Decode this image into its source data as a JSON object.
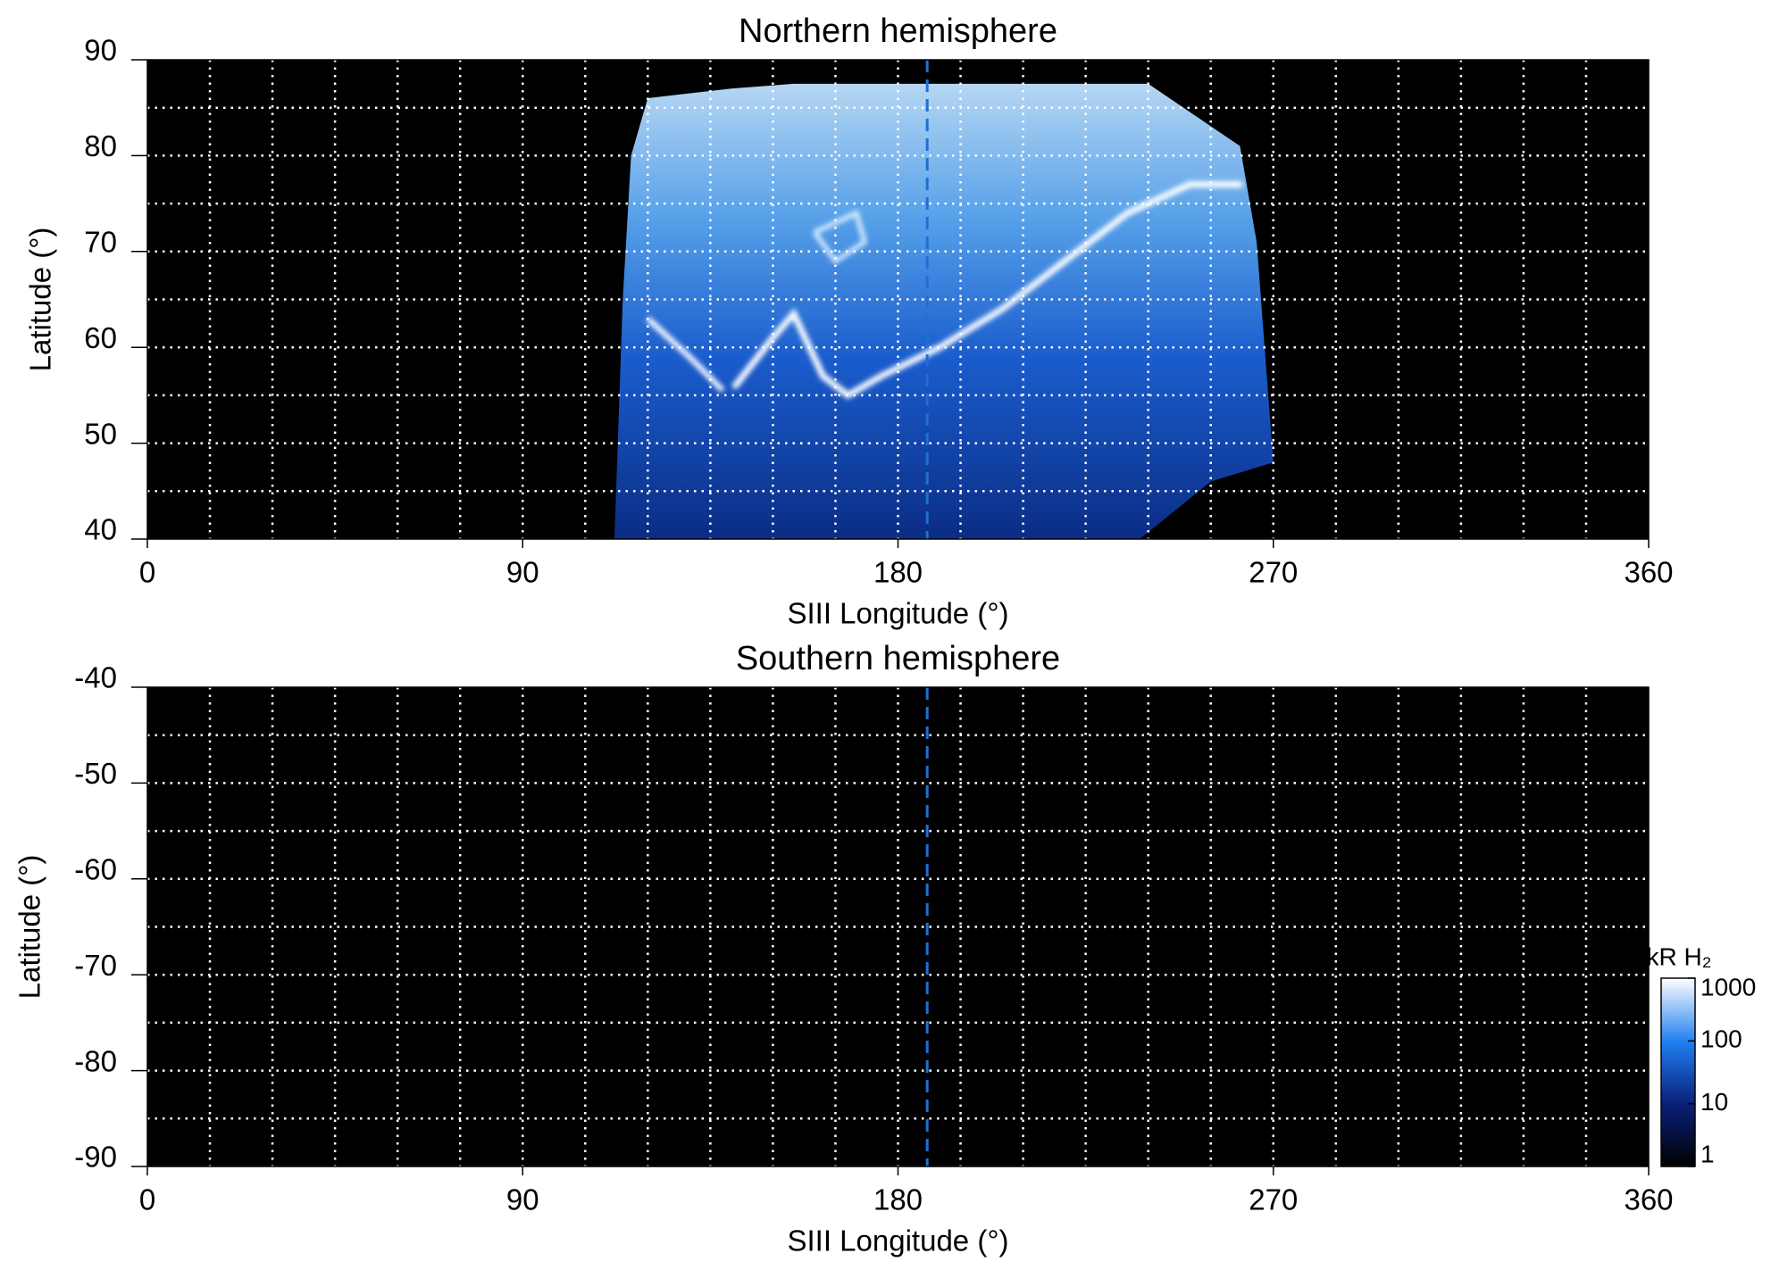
{
  "chart_data": [
    {
      "type": "map",
      "title": "Northern hemisphere",
      "xlabel": "SIII Longitude (°)",
      "ylabel": "Latitude (°)",
      "xlim": [
        0,
        360
      ],
      "xticks": [
        0,
        90,
        180,
        270,
        360
      ],
      "ylim": [
        40,
        90
      ],
      "yticks": [
        40,
        50,
        60,
        70,
        80,
        90
      ],
      "xgrid": [
        15,
        30,
        45,
        60,
        75,
        90,
        105,
        120,
        135,
        150,
        165,
        180,
        195,
        210,
        225,
        240,
        255,
        270,
        285,
        300,
        315,
        330,
        345
      ],
      "ygrid": [
        45,
        50,
        55,
        60,
        65,
        70,
        75,
        80,
        85
      ],
      "marker_x": 187,
      "marker_color": "#1f6fd6"
    },
    {
      "type": "map",
      "title": "Southern hemisphere",
      "xlabel": "SIII Longitude (°)",
      "ylabel": "Latitude (°)",
      "xlim": [
        0,
        360
      ],
      "xticks": [
        0,
        90,
        180,
        270,
        360
      ],
      "ylim": [
        -90,
        -40
      ],
      "yticks": [
        -90,
        -80,
        -70,
        -60,
        -50,
        -40
      ],
      "xgrid": [
        15,
        30,
        45,
        60,
        75,
        90,
        105,
        120,
        135,
        150,
        165,
        180,
        195,
        210,
        225,
        240,
        255,
        270,
        285,
        300,
        315,
        330,
        345
      ],
      "ygrid": [
        -85,
        -80,
        -75,
        -70,
        -65,
        -60,
        -55,
        -50,
        -45
      ],
      "marker_x": 187,
      "marker_color": "#1f6fd6",
      "colorbar": {
        "label": "kR H₂",
        "scale": "log",
        "lim": [
          1,
          1000
        ],
        "ticks": [
          1,
          10,
          100,
          1000
        ]
      }
    }
  ]
}
